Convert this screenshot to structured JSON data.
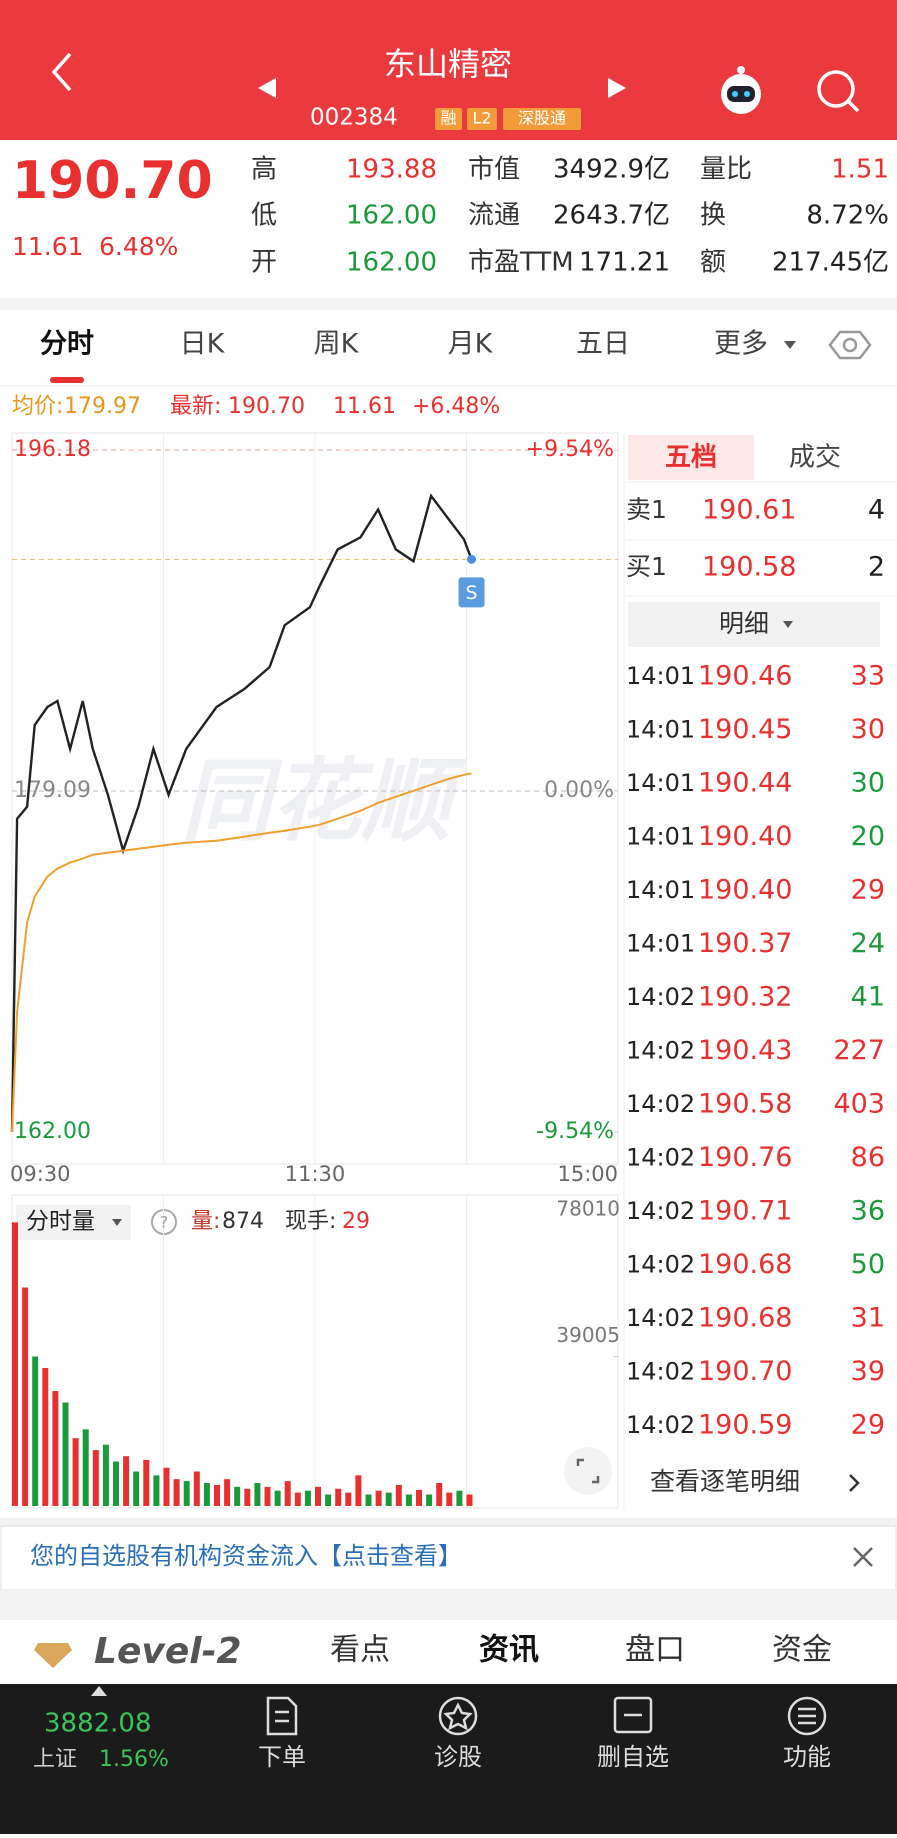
{
  "header": {
    "title": "东山精密",
    "code": "002384",
    "badges": [
      "融",
      "L2",
      "深股通"
    ]
  },
  "quote": {
    "price": "190.70",
    "change": "11.61",
    "change_pct": "6.48%",
    "color": "#e93030",
    "stats": [
      [
        {
          "label": "高",
          "value": "193.88",
          "color": "#e93030"
        },
        {
          "label": "市值",
          "value": "3492.9亿",
          "color": "#222"
        },
        {
          "label": "量比",
          "value": "1.51",
          "color": "#e93030"
        }
      ],
      [
        {
          "label": "低",
          "value": "162.00",
          "color": "#1a9a3a"
        },
        {
          "label": "流通",
          "value": "2643.7亿",
          "color": "#222"
        },
        {
          "label": "换",
          "value": "8.72%",
          "color": "#222"
        }
      ],
      [
        {
          "label": "开",
          "value": "162.00",
          "color": "#1a9a3a"
        },
        {
          "label": "市盈TTM",
          "value": "171.21",
          "color": "#222"
        },
        {
          "label": "额",
          "value": "217.45亿",
          "color": "#222"
        }
      ]
    ]
  },
  "tabs": [
    "分时",
    "日K",
    "周K",
    "月K",
    "五日",
    "更多"
  ],
  "info": {
    "avg_label": "均价:",
    "avg": "179.97",
    "last_label": "最新:",
    "last": "190.70",
    "change": "11.61",
    "change_pct": "+6.48%"
  },
  "watermark": "同花顺",
  "chart_data": [
    {
      "type": "line",
      "x": [
        0,
        2,
        6,
        9,
        14,
        18,
        23,
        28,
        32,
        38,
        44,
        50,
        56,
        62,
        69,
        81,
        92,
        102,
        108,
        118,
        122,
        129,
        138,
        145,
        152,
        159,
        166,
        173,
        179,
        182
      ],
      "series": [
        {
          "color": "#222222",
          "values": [
            162.0,
            177.7,
            178.3,
            182.4,
            183.3,
            183.6,
            181.2,
            183.6,
            181.2,
            178.9,
            176.1,
            178.3,
            181.2,
            178.9,
            181.2,
            183.3,
            184.2,
            185.3,
            187.4,
            188.3,
            189.4,
            191.2,
            191.8,
            193.2,
            191.2,
            190.6,
            193.88,
            192.7,
            191.7,
            190.7
          ]
        },
        {
          "color": "#f0a030",
          "values": [
            162.0,
            168.0,
            172.5,
            173.8,
            174.8,
            175.2,
            175.5,
            175.7,
            175.9,
            176.0,
            176.1,
            176.2,
            176.3,
            176.4,
            176.5,
            176.6,
            176.8,
            177.0,
            177.1,
            177.3,
            177.4,
            177.7,
            178.1,
            178.5,
            178.8,
            179.1,
            179.4,
            179.7,
            179.9,
            179.97
          ]
        }
      ],
      "xlim": [
        0,
        240
      ],
      "xticks": [
        {
          "value": 0,
          "label": "09:30"
        },
        {
          "value": 60,
          "label": null
        },
        {
          "value": 120,
          "label": "11:30"
        },
        {
          "value": 180,
          "label": null
        },
        {
          "value": 240,
          "label": "15:00"
        }
      ],
      "ylim": [
        162.0,
        196.18
      ],
      "yticks": [
        {
          "value": 196.18,
          "label": "196.18"
        },
        {
          "value": 179.09,
          "label": "179.09"
        },
        {
          "value": 162.0,
          "label": "162.00"
        }
      ],
      "y2lim": [
        -9.54,
        9.54
      ],
      "y2ticks": [
        {
          "value": 9.54,
          "label": "+9.54%"
        },
        {
          "value": 0,
          "label": "0.00%"
        },
        {
          "value": -9.54,
          "label": "-9.54%"
        }
      ],
      "tick_colors": [
        "#e93030",
        "#888888",
        "#1a9a3a"
      ],
      "marker": "S"
    },
    {
      "type": "bar",
      "x": [
        0,
        4,
        8,
        12,
        16,
        20,
        24,
        28,
        32,
        36,
        40,
        44,
        48,
        52,
        56,
        60,
        64,
        68,
        72,
        76,
        80,
        84,
        88,
        92,
        96,
        100,
        104,
        108,
        112,
        116,
        120,
        124,
        128,
        132,
        136,
        140,
        144,
        148,
        152,
        156,
        160,
        164,
        168,
        172,
        176,
        180
      ],
      "values": [
        74000,
        57000,
        39000,
        36000,
        30000,
        27000,
        17700,
        20000,
        14600,
        16000,
        11600,
        13000,
        9000,
        12000,
        8000,
        10000,
        7000,
        6500,
        9000,
        6000,
        5500,
        7000,
        5000,
        4500,
        6000,
        5000,
        4000,
        6500,
        3500,
        4000,
        5000,
        3000,
        4500,
        3500,
        8000,
        3000,
        4000,
        3500,
        5500,
        3000,
        4200,
        3000,
        6000,
        3500,
        4000,
        3000
      ],
      "colors": [
        "#e93030",
        "#e93030",
        "#1a9a3a",
        "#e93030",
        "#e93030",
        "#1a9a3a",
        "#e93030",
        "#1a9a3a",
        "#e93030",
        "#1a9a3a",
        "#1a9a3a",
        "#e93030",
        "#1a9a3a",
        "#e93030",
        "#1a9a3a",
        "#e93030",
        "#e93030",
        "#1a9a3a",
        "#e93030",
        "#1a9a3a",
        "#e93030",
        "#e93030",
        "#1a9a3a",
        "#e93030",
        "#1a9a3a",
        "#e93030",
        "#1a9a3a",
        "#e93030",
        "#e93030",
        "#1a9a3a",
        "#e93030",
        "#1a9a3a",
        "#e93030",
        "#e93030",
        "#e93030",
        "#1a9a3a",
        "#e93030",
        "#1a9a3a",
        "#e93030",
        "#1a9a3a",
        "#e93030",
        "#1a9a3a",
        "#e93030",
        "#e93030",
        "#1a9a3a",
        "#e93030"
      ],
      "xlim": [
        0,
        240
      ],
      "ylim": [
        0,
        78010
      ],
      "yticks": [
        39005,
        78010
      ]
    }
  ],
  "volume_panel": {
    "title": "分时量",
    "help": "?",
    "vol_label": "量:",
    "vol": "874",
    "hand_label": "现手:",
    "hand": "29"
  },
  "order_book": {
    "tabs": [
      "五档",
      "成交"
    ],
    "rows": [
      {
        "label": "卖1",
        "price": "190.61",
        "qty": "4"
      },
      {
        "label": "买1",
        "price": "190.58",
        "qty": "2"
      }
    ],
    "detail_title": "明细",
    "trades": [
      [
        "14:01",
        "190.46",
        "33"
      ],
      [
        "14:01",
        "190.45",
        "30"
      ],
      [
        "14:01",
        "190.44",
        "30"
      ],
      [
        "14:01",
        "190.40",
        "20"
      ],
      [
        "14:01",
        "190.40",
        "29"
      ],
      [
        "14:01",
        "190.37",
        "24"
      ],
      [
        "14:02",
        "190.32",
        "41"
      ],
      [
        "14:02",
        "190.43",
        "227"
      ],
      [
        "14:02",
        "190.58",
        "403"
      ],
      [
        "14:02",
        "190.76",
        "86"
      ],
      [
        "14:02",
        "190.71",
        "36"
      ],
      [
        "14:02",
        "190.68",
        "50"
      ],
      [
        "14:02",
        "190.68",
        "31"
      ],
      [
        "14:02",
        "190.70",
        "39"
      ],
      [
        "14:02",
        "190.59",
        "29"
      ]
    ],
    "trade_colors": [
      "#e93030",
      "#e93030",
      "#1a9a3a",
      "#1a9a3a",
      "#e93030",
      "#1a9a3a",
      "#1a9a3a",
      "#e93030",
      "#e93030",
      "#e93030",
      "#1a9a3a",
      "#1a9a3a",
      "#e93030",
      "#e93030",
      "#e93030"
    ],
    "more_link": "查看逐笔明细"
  },
  "banner": "您的自选股有机构资金流入【点击查看】",
  "bottom_tabs": {
    "brand": "Level-2",
    "items": [
      "看点",
      "资讯",
      "盘口",
      "资金"
    ]
  },
  "footer": {
    "index_value": "3882.08",
    "index_name": "上证",
    "index_pct": "1.56%",
    "items": [
      "下单",
      "诊股",
      "删自选",
      "功能"
    ]
  }
}
